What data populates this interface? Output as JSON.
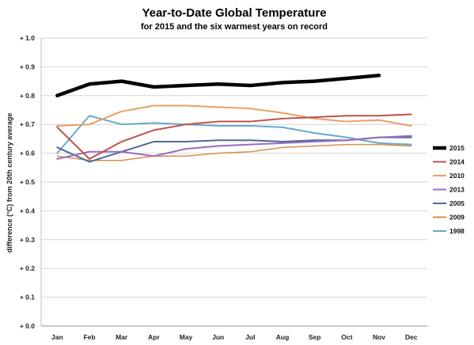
{
  "chart_data": {
    "type": "line",
    "title": "Year-to-Date Global Temperature",
    "subtitle": "for 2015 and the six warmest years on record",
    "ylabel": "difference (°C)  from 20th century average",
    "xlabel": "",
    "categories": [
      "Jan",
      "Feb",
      "Mar",
      "Apr",
      "May",
      "Jun",
      "Jul",
      "Aug",
      "Sep",
      "Oct",
      "Nov",
      "Dec"
    ],
    "ylim": [
      0,
      1.0
    ],
    "yticks": [
      {
        "value": 0.0,
        "label": "+ 0.0"
      },
      {
        "value": 0.1,
        "label": "+ 0.1"
      },
      {
        "value": 0.2,
        "label": "+ 0.2"
      },
      {
        "value": 0.3,
        "label": "+ 0.3"
      },
      {
        "value": 0.4,
        "label": "+ 0.4"
      },
      {
        "value": 0.5,
        "label": "+ 0.5"
      },
      {
        "value": 0.6,
        "label": "+ 0.6"
      },
      {
        "value": 0.7,
        "label": "+ 0.7"
      },
      {
        "value": 0.8,
        "label": "+ 0.8"
      },
      {
        "value": 0.9,
        "label": "+ 0.9"
      },
      {
        "value": 1.0,
        "label": "+ 1.0"
      }
    ],
    "grid": true,
    "legend_position": "right",
    "series": [
      {
        "name": "2015",
        "color": "#000000",
        "width": 4.5,
        "values": [
          0.8,
          0.84,
          0.85,
          0.83,
          0.835,
          0.84,
          0.835,
          0.845,
          0.85,
          0.86,
          0.87,
          null
        ]
      },
      {
        "name": "2014",
        "color": "#c0504d",
        "width": 2,
        "values": [
          0.69,
          0.58,
          0.64,
          0.68,
          0.7,
          0.71,
          0.71,
          0.72,
          0.725,
          0.73,
          0.73,
          0.735
        ]
      },
      {
        "name": "2010",
        "color": "#e8a060",
        "width": 2,
        "values": [
          0.695,
          0.7,
          0.745,
          0.765,
          0.765,
          0.76,
          0.755,
          0.74,
          0.72,
          0.71,
          0.715,
          0.695
        ]
      },
      {
        "name": "2013",
        "color": "#9b6cc4",
        "width": 2,
        "values": [
          0.58,
          0.605,
          0.605,
          0.59,
          0.615,
          0.625,
          0.63,
          0.635,
          0.64,
          0.645,
          0.655,
          0.66
        ]
      },
      {
        "name": "2005",
        "color": "#4a6a96",
        "width": 2,
        "values": [
          0.62,
          0.57,
          0.605,
          0.64,
          0.64,
          0.645,
          0.645,
          0.64,
          0.645,
          0.645,
          0.655,
          0.655
        ]
      },
      {
        "name": "2009",
        "color": "#d4904a",
        "width": 1.5,
        "values": [
          0.59,
          0.575,
          0.575,
          0.59,
          0.59,
          0.6,
          0.605,
          0.62,
          0.625,
          0.63,
          0.63,
          0.625
        ]
      },
      {
        "name": "1998",
        "color": "#6aaac8",
        "width": 2,
        "values": [
          0.6,
          0.73,
          0.7,
          0.705,
          0.7,
          0.695,
          0.695,
          0.69,
          0.67,
          0.655,
          0.635,
          0.63
        ]
      }
    ]
  }
}
